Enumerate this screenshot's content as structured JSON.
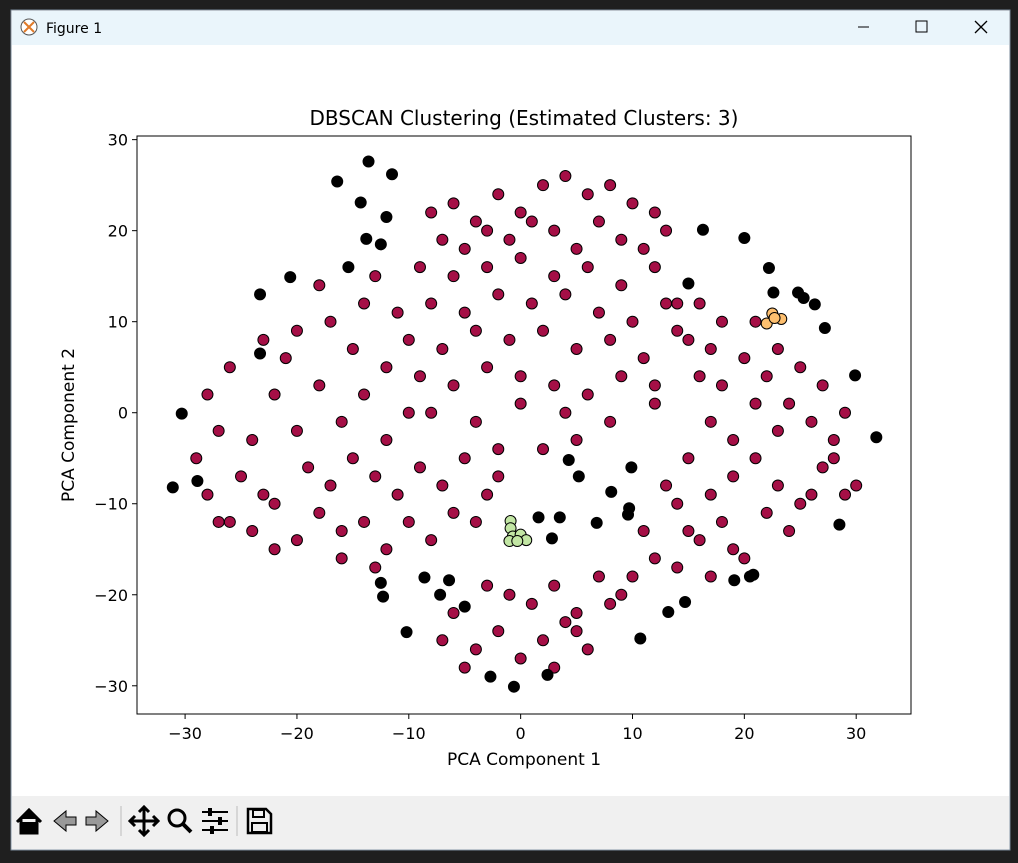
{
  "window": {
    "title": "Figure 1"
  },
  "chart_data": {
    "type": "scatter",
    "title": "DBSCAN Clustering (Estimated Clusters: 3)",
    "x_label": "PCA Component 1",
    "y_label": "PCA Component 2",
    "xlim": [
      -34.3,
      34.9
    ],
    "ylim": [
      -33.1,
      30.4
    ],
    "xticks": [
      {
        "value": -30,
        "label": "−30"
      },
      {
        "value": -20,
        "label": "−20"
      },
      {
        "value": -10,
        "label": "−10"
      },
      0,
      10,
      20,
      30
    ],
    "yticks": [
      {
        "value": -30,
        "label": "−30"
      },
      {
        "value": -20,
        "label": "−20"
      },
      {
        "value": -10,
        "label": "−10"
      },
      0,
      10,
      20,
      30
    ],
    "grid": false,
    "series": [
      {
        "color": "#a50f46",
        "x": [
          -8,
          -6,
          -4,
          -2,
          0,
          2,
          4,
          6,
          8,
          10,
          12,
          -7,
          -5,
          -3,
          -1,
          1,
          3,
          5,
          7,
          9,
          11,
          13,
          -9,
          -6,
          -3,
          0,
          3,
          6,
          9,
          12,
          14,
          -8,
          -5,
          -2,
          1,
          4,
          7,
          10,
          13,
          -10,
          -7,
          -4,
          -1,
          2,
          5,
          8,
          11,
          14,
          -9,
          -6,
          -3,
          0,
          3,
          6,
          9,
          12,
          -8,
          -4,
          0,
          4,
          8,
          12,
          16,
          2,
          5,
          -2,
          15,
          17,
          18,
          -11,
          -14,
          -17,
          -20,
          -23,
          -26,
          -28,
          -27,
          -29,
          -28,
          -26,
          -24,
          -22,
          -20,
          -18,
          -16,
          -14,
          -12,
          -10,
          -8,
          -6,
          -24,
          -22,
          -20,
          -18,
          -16,
          -14,
          -12,
          -10,
          -21,
          -19,
          -17,
          -15,
          -13,
          -11,
          -9,
          -7,
          -5,
          -3,
          -25,
          -23,
          -15,
          -12,
          -18,
          -13,
          -16,
          -13,
          -4,
          -2,
          -27,
          -22,
          16,
          18,
          20,
          22,
          24,
          14,
          17,
          19,
          21,
          23,
          25,
          27,
          29,
          28,
          26,
          24,
          22,
          20,
          18,
          16,
          25,
          27,
          29,
          23,
          21,
          19,
          17,
          15,
          13,
          11,
          14,
          17,
          19,
          12,
          15,
          28,
          26,
          30,
          21,
          23,
          -6,
          -4,
          -2,
          0,
          2,
          4,
          6,
          8,
          -5,
          -1,
          1,
          3,
          5,
          7,
          9,
          -3,
          3,
          5,
          -7,
          10
        ],
        "y": [
          22,
          23,
          21,
          24,
          22,
          25,
          26,
          24,
          25,
          23,
          22,
          19,
          18,
          20,
          19,
          21,
          20,
          18,
          21,
          19,
          18,
          20,
          16,
          15,
          16,
          17,
          15,
          16,
          14,
          16,
          12,
          12,
          11,
          13,
          12,
          13,
          11,
          10,
          12,
          8,
          7,
          9,
          8,
          9,
          7,
          8,
          6,
          9,
          4,
          3,
          5,
          4,
          3,
          2,
          4,
          3,
          0,
          -1,
          1,
          0,
          -1,
          1,
          4,
          -4,
          -3,
          -4,
          8,
          7,
          3,
          11,
          12,
          10,
          9,
          8,
          5,
          2,
          -2,
          -5,
          -9,
          -12,
          -13,
          -10,
          -14,
          -11,
          -13,
          -12,
          -15,
          -12,
          -14,
          -11,
          -3,
          2,
          -2,
          3,
          -1,
          2,
          -3,
          0,
          6,
          -6,
          -8,
          -5,
          -7,
          -9,
          -6,
          -8,
          -5,
          -9,
          -7,
          -9,
          7,
          5,
          14,
          15,
          -16,
          -17,
          -12,
          -7,
          -12,
          -15,
          -14,
          -12,
          -16,
          -11,
          -13,
          -10,
          -9,
          -7,
          -5,
          -8,
          -10,
          -6,
          -9,
          -3,
          -1,
          1,
          4,
          6,
          10,
          12,
          5,
          3,
          0,
          -2,
          1,
          -3,
          -1,
          -5,
          -8,
          -13,
          -17,
          -18,
          -15,
          -16,
          -13,
          -5,
          -9,
          -8,
          10,
          7,
          -22,
          -26,
          -24,
          -27,
          -25,
          -23,
          -26,
          -21,
          -28,
          -20,
          -21,
          -19,
          -22,
          -18,
          -20,
          -19,
          -28,
          -24,
          -25,
          -18
        ]
      },
      {
        "color": "#000000",
        "x": [
          -13.6,
          -16.4,
          -11.5,
          -14.3,
          -12.0,
          -13.8,
          -12.5,
          -15.4,
          -20.6,
          -23.3,
          -23.3,
          -30.3,
          -31.1,
          -28.9,
          -12.5,
          -12.3,
          -8.6,
          -6.4,
          -7.2,
          -10.2,
          -5.0,
          -2.7,
          -0.6,
          2.4,
          1.6,
          3.5,
          2.8,
          4.3,
          5.2,
          6.8,
          8.1,
          9.7,
          9.9,
          9.6,
          13.2,
          14.7,
          10.7,
          15.0,
          16.3,
          20.0,
          22.2,
          22.6,
          24.8,
          25.3,
          26.3,
          27.2,
          29.9,
          31.8,
          28.5,
          20.5,
          20.8,
          19.1
        ],
        "y": [
          27.6,
          25.4,
          26.2,
          23.1,
          21.5,
          19.1,
          18.5,
          16.0,
          14.9,
          13.0,
          6.5,
          -0.1,
          -8.2,
          -7.5,
          -18.7,
          -20.2,
          -18.1,
          -18.4,
          -20.0,
          -24.1,
          -21.3,
          -29.0,
          -30.1,
          -28.8,
          -11.5,
          -11.5,
          -13.8,
          -5.2,
          -7.0,
          -12.1,
          -8.7,
          -10.5,
          -6.0,
          -11.2,
          -21.9,
          -20.8,
          -24.8,
          14.2,
          20.1,
          19.2,
          15.9,
          13.2,
          13.2,
          12.6,
          11.9,
          9.3,
          4.1,
          -2.7,
          -12.3,
          -18.0,
          -17.8,
          -18.4
        ]
      },
      {
        "color": "#c2e6a4",
        "x": [
          -0.9,
          -0.9,
          -0.7,
          0.0,
          0.5,
          -1.0,
          -0.3
        ],
        "y": [
          -11.9,
          -12.7,
          -13.6,
          -13.4,
          -14.0,
          -14.1,
          -14.1
        ]
      },
      {
        "color": "#fdbf6f",
        "x": [
          22.5,
          23.3,
          22.0,
          22.7
        ],
        "y": [
          10.9,
          10.3,
          9.8,
          10.4
        ]
      }
    ]
  }
}
